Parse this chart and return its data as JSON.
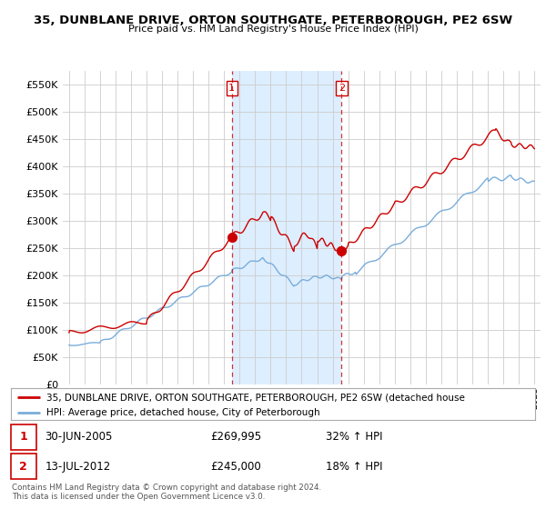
{
  "title": "35, DUNBLANE DRIVE, ORTON SOUTHGATE, PETERBOROUGH, PE2 6SW",
  "subtitle": "Price paid vs. HM Land Registry's House Price Index (HPI)",
  "sale1_date": "30-JUN-2005",
  "sale1_price": 269995,
  "sale1_hpi": "32% ↑ HPI",
  "sale2_date": "13-JUL-2012",
  "sale2_price": 245000,
  "sale2_hpi": "18% ↑ HPI",
  "legend_line1": "35, DUNBLANE DRIVE, ORTON SOUTHGATE, PETERBOROUGH, PE2 6SW (detached house",
  "legend_line2": "HPI: Average price, detached house, City of Peterborough",
  "footer1": "Contains HM Land Registry data © Crown copyright and database right 2024.",
  "footer2": "This data is licensed under the Open Government Licence v3.0.",
  "red_color": "#cc0000",
  "blue_color": "#7aaddb",
  "shade_color": "#ddeeff",
  "bg_color": "#ffffff",
  "grid_color": "#cccccc",
  "ylim_min": 0,
  "ylim_max": 575000,
  "sale1_year": 2005.5,
  "sale2_year": 2012.58
}
